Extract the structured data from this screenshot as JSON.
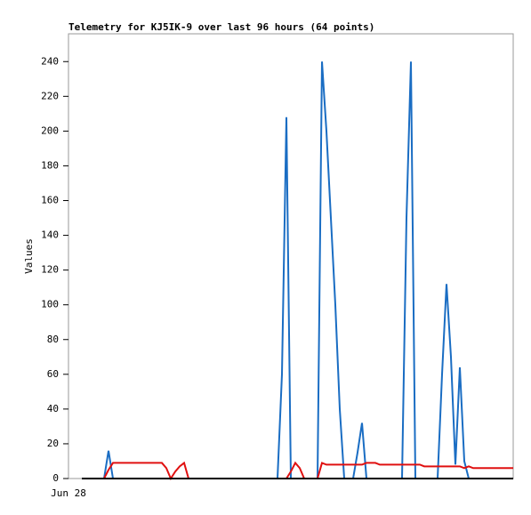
{
  "chart_data": {
    "type": "line",
    "title": "Telemetry for KJ5IK-9 over last 96 hours (64 points)",
    "y_label": "Values",
    "categories": [
      "Jun 28",
      null,
      null,
      null,
      null,
      null,
      null,
      null,
      null,
      null,
      null,
      null,
      null,
      null,
      null,
      null,
      null,
      null,
      null,
      null,
      null,
      null,
      null,
      null,
      null,
      null,
      null,
      null,
      null,
      null,
      null,
      null,
      null,
      null,
      null,
      null,
      null,
      null,
      null,
      null,
      null,
      null,
      null,
      null,
      null,
      null,
      null,
      null,
      null,
      null,
      null,
      null,
      null,
      null,
      null,
      null,
      null,
      null,
      null,
      null,
      null,
      null,
      null,
      null,
      null,
      null,
      null,
      null,
      null,
      null,
      null,
      null,
      null,
      null,
      null,
      null,
      null,
      null,
      null,
      null,
      null,
      null,
      null,
      null,
      null,
      null,
      null,
      null,
      null,
      null,
      null,
      null,
      null,
      null,
      null,
      null,
      null,
      null,
      null,
      null,
      null
    ],
    "series": [
      {
        "color": "#1a6dc3",
        "values": [
          null,
          null,
          null,
          0,
          0,
          0,
          0,
          0,
          0,
          16,
          0,
          0,
          0,
          0,
          0,
          0,
          0,
          0,
          0,
          0,
          0,
          0,
          0,
          0,
          0,
          0,
          0,
          0,
          0,
          0,
          0,
          0,
          0,
          0,
          0,
          0,
          0,
          0,
          0,
          0,
          0,
          0,
          0,
          0,
          0,
          0,
          0,
          0,
          60,
          208,
          0,
          0,
          0,
          0,
          0,
          0,
          0,
          240,
          200,
          150,
          100,
          40,
          0,
          0,
          0,
          15,
          32,
          0,
          0,
          0,
          0,
          0,
          0,
          0,
          0,
          0,
          150,
          240,
          0,
          0,
          0,
          0,
          0,
          0,
          60,
          112,
          70,
          8,
          64,
          10,
          0,
          null,
          null,
          null,
          null,
          null,
          null,
          null,
          null,
          null,
          null
        ]
      },
      {
        "color": "#e01010",
        "values": [
          null,
          null,
          null,
          null,
          null,
          null,
          null,
          null,
          0,
          5,
          9,
          9,
          9,
          9,
          9,
          9,
          9,
          9,
          9,
          9,
          9,
          9,
          6,
          0,
          4,
          7,
          9,
          0,
          0,
          0,
          0,
          0,
          0,
          0,
          0,
          0,
          0,
          0,
          0,
          0,
          0,
          0,
          0,
          0,
          0,
          0,
          0,
          0,
          0,
          0,
          4,
          9,
          6,
          0,
          0,
          0,
          0,
          9,
          8,
          8,
          8,
          8,
          8,
          8,
          8,
          8,
          8,
          9,
          9,
          9,
          8,
          8,
          8,
          8,
          8,
          8,
          8,
          8,
          8,
          8,
          7,
          7,
          7,
          7,
          7,
          7,
          7,
          7,
          7,
          6,
          7,
          6,
          6,
          6,
          6,
          6,
          6,
          6,
          6,
          6,
          6
        ]
      },
      {
        "color": "#000000",
        "values": [
          null,
          null,
          null,
          0,
          0,
          0,
          0,
          0,
          0,
          0,
          0,
          0,
          0,
          0,
          0,
          0,
          0,
          0,
          0,
          0,
          0,
          0,
          0,
          0,
          0,
          0,
          0,
          0,
          0,
          0,
          0,
          0,
          0,
          0,
          0,
          0,
          0,
          0,
          0,
          0,
          0,
          0,
          0,
          0,
          0,
          0,
          0,
          0,
          0,
          0,
          0,
          0,
          0,
          0,
          0,
          0,
          0,
          0,
          0,
          0,
          0,
          0,
          0,
          0,
          0,
          0,
          0,
          0,
          0,
          0,
          0,
          0,
          0,
          0,
          0,
          0,
          0,
          0,
          0,
          0,
          0,
          0,
          0,
          0,
          0,
          0,
          0,
          0,
          0,
          0,
          0,
          0,
          0,
          0,
          0,
          0,
          0,
          0,
          0,
          0,
          0
        ]
      }
    ],
    "ylim": [
      0,
      256
    ],
    "yticks": [
      0,
      20,
      40,
      60,
      80,
      100,
      120,
      140,
      160,
      180,
      200,
      220,
      240
    ],
    "grid": false
  }
}
